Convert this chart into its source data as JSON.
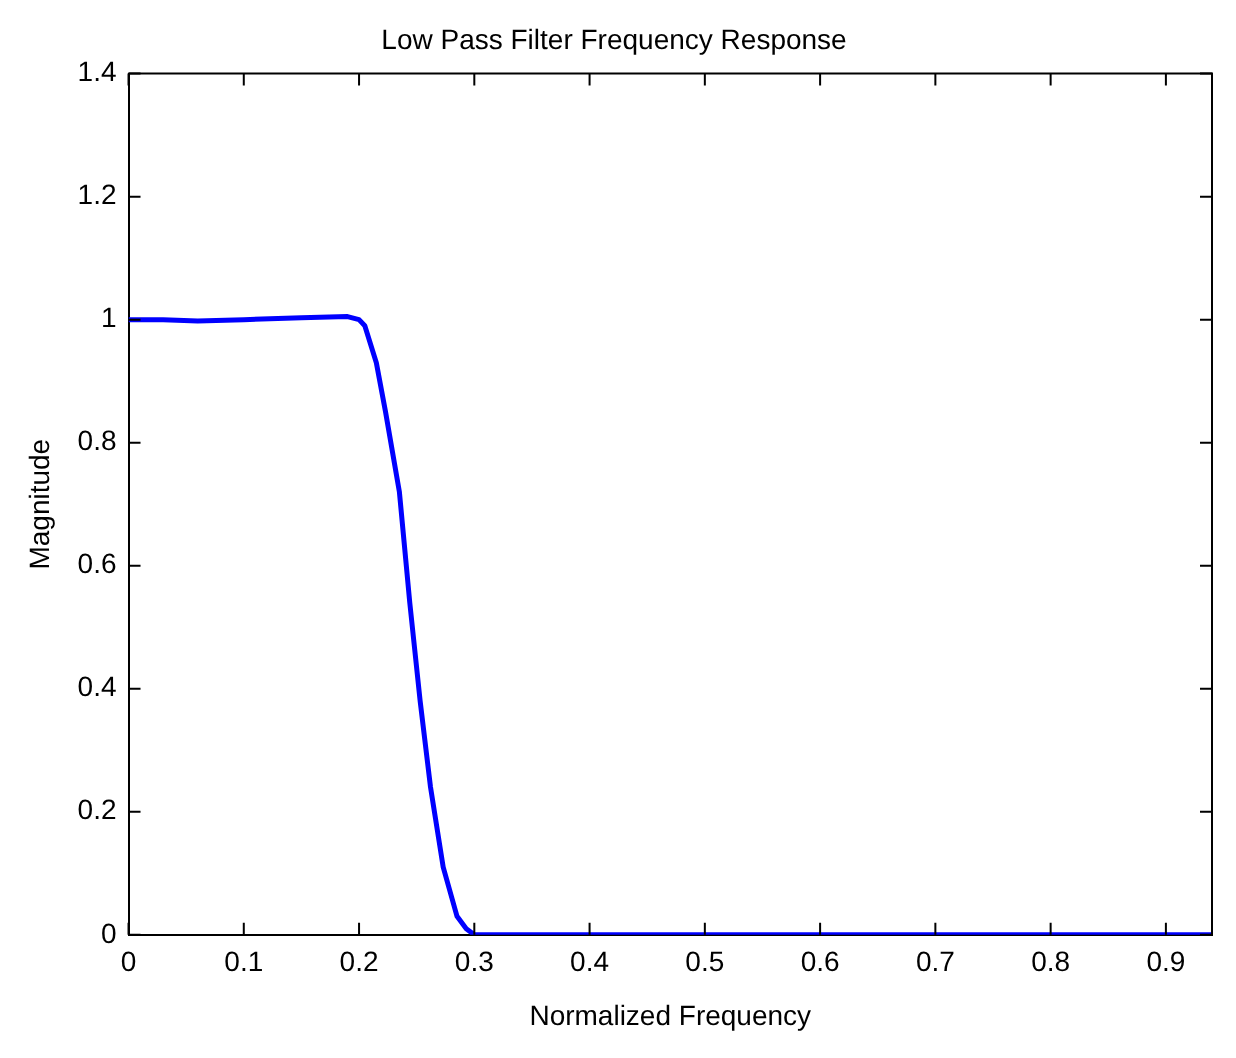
{
  "chart_data": {
    "type": "line",
    "title": "Low Pass Filter Frequency Response",
    "xlabel": "Normalized Frequency",
    "ylabel": "Magnitude",
    "x": [
      0,
      0.03,
      0.06,
      0.1,
      0.15,
      0.19,
      0.2,
      0.205,
      0.215,
      0.223,
      0.235,
      0.244,
      0.253,
      0.262,
      0.273,
      0.285,
      0.293,
      0.3,
      0.35,
      0.5,
      0.7,
      0.94
    ],
    "series": [
      {
        "color": "#0000ff",
        "values": [
          1.0,
          1.0,
          0.998,
          1.0,
          1.003,
          1.005,
          1.0,
          0.99,
          0.93,
          0.85,
          0.72,
          0.54,
          0.38,
          0.24,
          0.11,
          0.03,
          0.01,
          0,
          0,
          0,
          0,
          0
        ]
      }
    ],
    "xlim": [
      0,
      0.94
    ],
    "xticks": [
      0,
      0.1,
      0.2,
      0.3,
      0.4,
      0.5,
      0.6,
      0.7,
      0.8,
      0.9
    ],
    "ylim": [
      0,
      1.4
    ],
    "yticks": [
      0,
      0.2,
      0.4,
      0.6,
      0.8,
      1,
      1.2,
      1.4
    ],
    "grid": false,
    "legend": false,
    "marker": "none",
    "line_style": "solid"
  }
}
